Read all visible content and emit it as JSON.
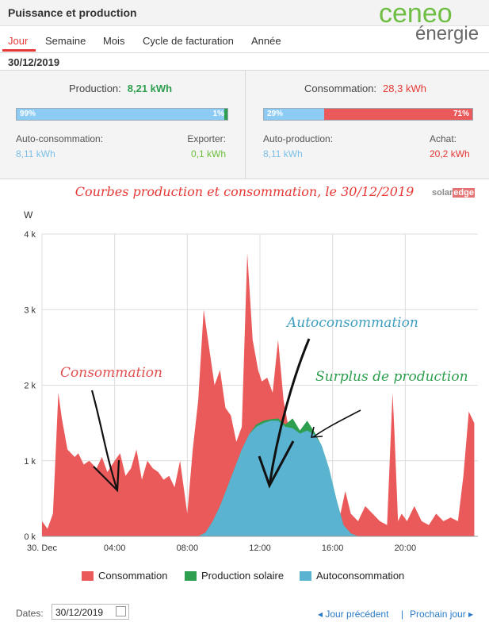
{
  "header": {
    "title": "Puissance et production",
    "logo_top": "ceneo",
    "logo_bottom": "énergie"
  },
  "tabs": [
    {
      "label": "Jour",
      "active": true
    },
    {
      "label": "Semaine"
    },
    {
      "label": "Mois"
    },
    {
      "label": "Cycle de facturation"
    },
    {
      "label": "Année"
    }
  ],
  "date_heading": "30/12/2019",
  "production": {
    "label": "Production:",
    "value": "8,21 kWh",
    "bar": {
      "left_pct": "99%",
      "right_pct": "1%",
      "left_fraction": 0.99
    },
    "left_label": "Auto-consommation:",
    "left_value": "8,11 kWh",
    "right_label": "Exporter:",
    "right_value": "0,1 kWh"
  },
  "consumption": {
    "label": "Consommation:",
    "value": "28,3 kWh",
    "bar": {
      "left_pct": "29%",
      "right_pct": "71%",
      "left_fraction": 0.29
    },
    "left_label": "Auto-production:",
    "left_value": "8,11 kWh",
    "right_label": "Achat:",
    "right_value": "20,2 kWh"
  },
  "annotations": {
    "title": "Courbes production et consommation, le 30/12/2019",
    "consommation": "Consommation",
    "autoconsommation": "Autoconsommation",
    "surplus": "Surplus de production"
  },
  "brand": {
    "a": "solar",
    "b": "edge"
  },
  "colors": {
    "consumption": "#eb5a5a",
    "production": "#2e9e4f",
    "self": "#5ab3d0",
    "accent": "#e53935",
    "link": "#2a7bc8"
  },
  "chart_data": {
    "type": "area",
    "ylabel": "W",
    "ylim": [
      0,
      4000
    ],
    "yticks": [
      "0 k",
      "1 k",
      "2 k",
      "3 k",
      "4 k"
    ],
    "xlim": [
      0,
      24
    ],
    "xticks": [
      "30. Dec",
      "04:00",
      "08:00",
      "12:00",
      "16:00",
      "20:00"
    ],
    "series": [
      {
        "name": "Consommation",
        "x": [
          0,
          0.3,
          0.6,
          0.8,
          0.9,
          1.1,
          1.4,
          1.8,
          2,
          2.3,
          2.6,
          3,
          3.3,
          3.6,
          4,
          4.3,
          4.6,
          4.9,
          5.2,
          5.5,
          5.8,
          6.1,
          6.4,
          6.7,
          7,
          7.3,
          7.6,
          8,
          8.3,
          8.6,
          8.9,
          9.2,
          9.5,
          9.8,
          10.1,
          10.4,
          10.7,
          11,
          11.3,
          11.6,
          11.9,
          12.1,
          12.4,
          12.7,
          13,
          13.3,
          13.6,
          13.9,
          14.2,
          14.5,
          14.8,
          15.1,
          15.4,
          15.7,
          16,
          16.3,
          16.7,
          17,
          17.4,
          17.8,
          18.2,
          18.6,
          19,
          19.3,
          19.4,
          19.6,
          19.8,
          20.1,
          20.5,
          20.9,
          21.3,
          21.7,
          22.1,
          22.5,
          22.9,
          23.2,
          23.5,
          23.8
        ],
        "values": [
          200,
          100,
          300,
          1350,
          1900,
          1550,
          1150,
          1050,
          1100,
          950,
          1000,
          900,
          1050,
          850,
          1000,
          1100,
          800,
          900,
          1150,
          750,
          1000,
          900,
          850,
          750,
          800,
          650,
          1000,
          300,
          1150,
          1800,
          3000,
          2500,
          2000,
          2200,
          1700,
          1600,
          1250,
          1450,
          3750,
          2600,
          2200,
          2050,
          2100,
          1900,
          2600,
          1800,
          1400,
          1500,
          1300,
          1000,
          1200,
          650,
          250,
          200,
          350,
          150,
          600,
          300,
          200,
          400,
          300,
          200,
          150,
          1900,
          1400,
          200,
          300,
          200,
          400,
          200,
          150,
          300,
          200,
          250,
          200,
          800,
          1650,
          1500
        ]
      },
      {
        "name": "Production solaire",
        "x": [
          8.6,
          9,
          9.4,
          9.8,
          10.2,
          10.6,
          11,
          11.4,
          11.8,
          12.2,
          12.6,
          13,
          13.4,
          13.8,
          14.2,
          14.6,
          15,
          15.4,
          15.8,
          16.2,
          16.6,
          17,
          17.4
        ],
        "values": [
          0,
          50,
          200,
          400,
          650,
          900,
          1150,
          1350,
          1480,
          1530,
          1550,
          1560,
          1480,
          1560,
          1400,
          1530,
          1380,
          1200,
          900,
          500,
          150,
          40,
          0
        ]
      },
      {
        "name": "Autoconsommation",
        "x": [
          8.6,
          9,
          9.4,
          9.8,
          10.2,
          10.6,
          11,
          11.4,
          11.8,
          12.2,
          12.6,
          13,
          13.4,
          13.8,
          14.2,
          14.6,
          15,
          15.4,
          15.8,
          16.2,
          16.6,
          17,
          17.4
        ],
        "values": [
          0,
          50,
          200,
          400,
          650,
          900,
          1150,
          1350,
          1450,
          1500,
          1530,
          1530,
          1450,
          1430,
          1360,
          1400,
          1350,
          1200,
          900,
          500,
          150,
          40,
          0
        ]
      }
    ]
  },
  "legend": [
    {
      "label": "Consommation",
      "color": "#eb5a5a"
    },
    {
      "label": "Production solaire",
      "color": "#2e9e4f"
    },
    {
      "label": "Autoconsommation",
      "color": "#5ab3d0"
    }
  ],
  "footer": {
    "dates_label": "Dates:",
    "date_value": "30/12/2019",
    "prev_label": "Jour précédent",
    "separator": "|",
    "next_label": "Prochain jour"
  }
}
